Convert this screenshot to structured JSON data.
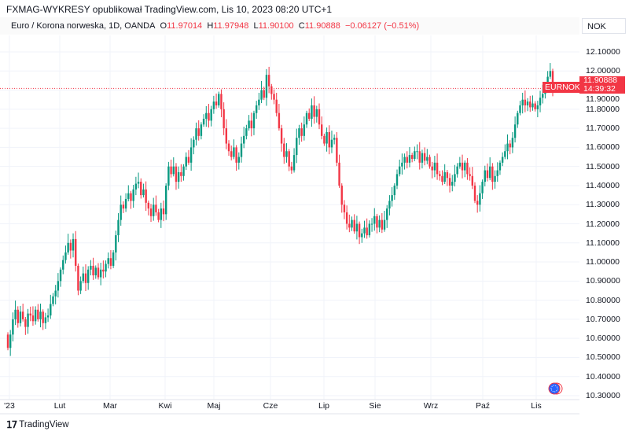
{
  "header": {
    "published": "FXMAG-WYKRESY opublikował TradingView.com, Lis 10, 2023 08:20 UTC+1"
  },
  "symbol": {
    "title": "Euro / Korona norweska, 1D, OANDA",
    "o_label": "O",
    "o": "11.97014",
    "h_label": "H",
    "h": "11.97948",
    "l_label": "L",
    "l": "11.90100",
    "c_label": "C",
    "c": "11.90888",
    "change": "−0.06127 (−0.51%)"
  },
  "currency": "NOK",
  "last_price": {
    "ticker": "EURNOK",
    "price": "11.90888",
    "countdown": "14:39:32"
  },
  "brand": {
    "logo": "TV",
    "name": "TradingView"
  },
  "colors": {
    "up": "#089981",
    "down": "#f23645",
    "grid": "#f0f3fa"
  },
  "chart_data": {
    "type": "candlestick",
    "ylim": [
      10.3,
      12.1
    ],
    "y_ticks": [
      "12.10000",
      "12.00000",
      "11.90000",
      "11.80000",
      "11.70000",
      "11.60000",
      "11.50000",
      "11.40000",
      "11.30000",
      "11.20000",
      "11.10000",
      "11.00000",
      "10.90000",
      "10.80000",
      "10.70000",
      "10.60000",
      "10.50000",
      "10.40000",
      "10.30000"
    ],
    "x_ticks": [
      "'23",
      "Lut",
      "Mar",
      "Kwi",
      "Maj",
      "Cze",
      "Lip",
      "Sie",
      "Wrz",
      "Paź",
      "Lis"
    ],
    "grid": true,
    "last_price_line": 11.90888,
    "closes": [
      10.55,
      10.62,
      10.7,
      10.75,
      10.68,
      10.74,
      10.7,
      10.66,
      10.73,
      10.72,
      10.69,
      10.75,
      10.7,
      10.74,
      10.68,
      10.71,
      10.72,
      10.78,
      10.82,
      10.85,
      10.9,
      10.96,
      11.01,
      11.05,
      11.1,
      11.06,
      11.12,
      10.98,
      10.85,
      10.9,
      10.94,
      10.89,
      10.96,
      10.98,
      10.93,
      10.97,
      10.92,
      10.96,
      10.95,
      10.99,
      11.02,
      10.98,
      11.05,
      11.14,
      11.22,
      11.3,
      11.28,
      11.33,
      11.36,
      11.32,
      11.38,
      11.41,
      11.42,
      11.35,
      11.38,
      11.31,
      11.28,
      11.24,
      11.3,
      11.26,
      11.22,
      11.28,
      11.25,
      11.4,
      11.5,
      11.46,
      11.5,
      11.42,
      11.47,
      11.45,
      11.5,
      11.55,
      11.52,
      11.6,
      11.64,
      11.7,
      11.66,
      11.72,
      11.75,
      11.78,
      11.74,
      11.8,
      11.84,
      11.82,
      11.88,
      11.8,
      11.7,
      11.62,
      11.58,
      11.55,
      11.6,
      11.52,
      11.55,
      11.62,
      11.66,
      11.7,
      11.74,
      11.7,
      11.78,
      11.82,
      11.85,
      11.9,
      11.86,
      11.98,
      11.92,
      11.88,
      11.85,
      11.78,
      11.7,
      11.62,
      11.55,
      11.58,
      11.5,
      11.48,
      11.56,
      11.65,
      11.7,
      11.66,
      11.72,
      11.78,
      11.75,
      11.82,
      11.76,
      11.8,
      11.72,
      11.66,
      11.62,
      11.68,
      11.6,
      11.64,
      11.65,
      11.52,
      11.4,
      11.3,
      11.26,
      11.2,
      11.18,
      11.22,
      11.16,
      11.2,
      11.13,
      11.15,
      11.18,
      11.14,
      11.2,
      11.2,
      11.24,
      11.18,
      11.22,
      11.17,
      11.22,
      11.28,
      11.32,
      11.35,
      11.4,
      11.46,
      11.5,
      11.52,
      11.55,
      11.52,
      11.56,
      11.54,
      11.58,
      11.58,
      11.52,
      11.57,
      11.53,
      11.55,
      11.5,
      11.48,
      11.52,
      11.46,
      11.45,
      11.42,
      11.47,
      11.44,
      11.4,
      11.42,
      11.46,
      11.5,
      11.52,
      11.48,
      11.52,
      11.46,
      11.45,
      11.4,
      11.32,
      11.3,
      11.36,
      11.42,
      11.48,
      11.44,
      11.5,
      11.42,
      11.45,
      11.48,
      11.52,
      11.55,
      11.58,
      11.62,
      11.6,
      11.65,
      11.72,
      11.78,
      11.82,
      11.85,
      11.82,
      11.84,
      11.81,
      11.83,
      11.8,
      11.82,
      11.86,
      11.88,
      11.92,
      11.97,
      12.0,
      11.91
    ],
    "first_open": 10.62
  }
}
